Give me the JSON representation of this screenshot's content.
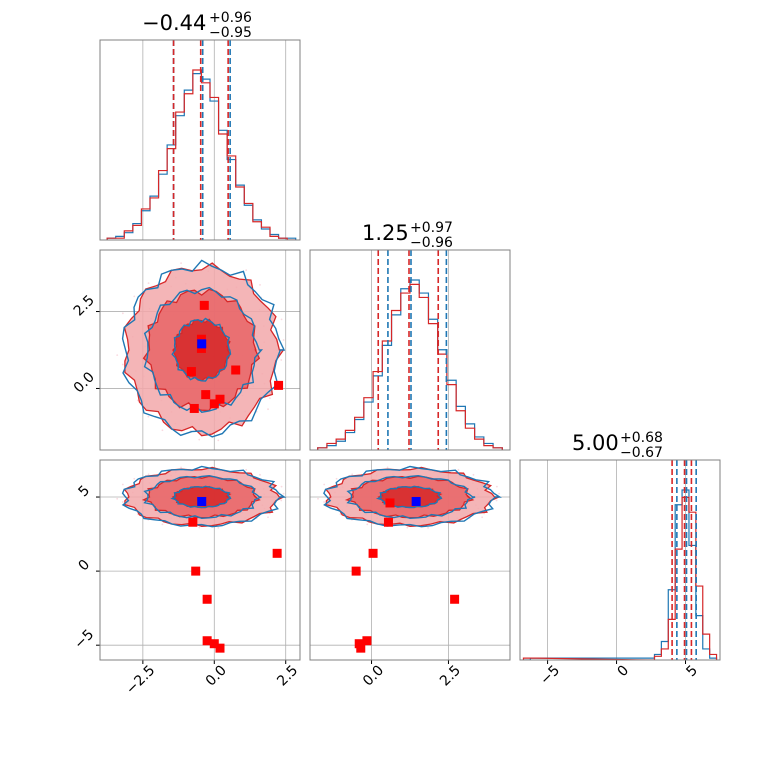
{
  "colors": {
    "samples_a": "#1f77b4",
    "samples_b": "#d62728",
    "points": "#ff0000",
    "truth": "#0000ff",
    "grid": "#b0b0b0",
    "frame": "#808080"
  },
  "chart_data": [
    {
      "type": "histogram",
      "panel": "x0",
      "title": {
        "main": "−0.44",
        "sup": "+0.96",
        "sub": "−0.95"
      },
      "xlim": [
        -4.0,
        3.0
      ],
      "grid": true,
      "reference_lines": {
        "samples_a": [
          -1.46,
          -0.44,
          0.52
        ],
        "samples_b": [
          -1.39,
          -0.44,
          0.52
        ]
      },
      "series": [
        {
          "bin_centers": [
            -3.6,
            -3.3,
            -3.0,
            -2.7,
            -2.4,
            -2.1,
            -1.8,
            -1.5,
            -1.2,
            -0.9,
            -0.6,
            -0.3,
            0.0,
            0.3,
            0.6,
            0.9,
            1.2,
            1.5,
            1.8,
            2.1,
            2.4,
            2.7
          ],
          "counts": [
            1,
            2,
            4,
            9,
            16,
            24,
            36,
            52,
            68,
            82,
            91,
            88,
            76,
            60,
            44,
            30,
            19,
            11,
            6,
            3,
            1,
            1
          ]
        },
        {
          "bin_centers": [
            -3.6,
            -3.3,
            -3.0,
            -2.7,
            -2.4,
            -2.1,
            -1.8,
            -1.5,
            -1.2,
            -0.9,
            -0.6,
            -0.3,
            0.0,
            0.3,
            0.6,
            0.9,
            1.2,
            1.5,
            1.8,
            2.1,
            2.4,
            2.7
          ],
          "counts": [
            1,
            1,
            5,
            8,
            17,
            23,
            38,
            50,
            70,
            80,
            93,
            86,
            78,
            58,
            46,
            29,
            20,
            10,
            7,
            2,
            1,
            0
          ]
        }
      ]
    },
    {
      "type": "histogram",
      "panel": "x1",
      "title": {
        "main": "1.25",
        "sup": "+0.97",
        "sub": "−0.96"
      },
      "xlim": [
        -2.0,
        4.5
      ],
      "grid": true,
      "reference_lines": {
        "samples_a": [
          0.5,
          1.25,
          2.4
        ],
        "samples_b": [
          0.25,
          1.25,
          2.2
        ]
      },
      "series": [
        {
          "bin_centers": [
            -1.6,
            -1.3,
            -1.0,
            -0.7,
            -0.4,
            -0.1,
            0.2,
            0.5,
            0.8,
            1.1,
            1.4,
            1.7,
            2.0,
            2.3,
            2.6,
            2.9,
            3.2,
            3.5,
            3.8,
            4.1
          ],
          "counts": [
            1,
            2,
            4,
            8,
            14,
            22,
            34,
            48,
            62,
            74,
            78,
            72,
            60,
            46,
            32,
            20,
            12,
            6,
            3,
            1
          ]
        },
        {
          "bin_centers": [
            -1.6,
            -1.3,
            -1.0,
            -0.7,
            -0.4,
            -0.1,
            0.2,
            0.5,
            0.8,
            1.1,
            1.4,
            1.7,
            2.0,
            2.3,
            2.6,
            2.9,
            3.2,
            3.5,
            3.8,
            4.1
          ],
          "counts": [
            1,
            3,
            5,
            9,
            15,
            24,
            36,
            50,
            64,
            72,
            76,
            70,
            58,
            44,
            30,
            18,
            10,
            5,
            2,
            1
          ]
        }
      ]
    },
    {
      "type": "histogram",
      "panel": "x2",
      "title": {
        "main": "5.00",
        "sup": "+0.68",
        "sub": "−0.67"
      },
      "xlim": [
        -7.0,
        7.5
      ],
      "xticks": [
        -5,
        0,
        5
      ],
      "grid": true,
      "reference_lines": {
        "samples_a": [
          4.3,
          5.0,
          5.7
        ],
        "samples_b": [
          4.1,
          5.0,
          5.5
        ]
      },
      "series": [
        {
          "bin_centers": [
            -6.5,
            -6.0,
            2.5,
            3.0,
            3.5,
            4.0,
            4.5,
            5.0,
            5.5,
            6.0,
            6.5,
            7.0
          ],
          "counts": [
            0,
            1,
            1,
            3,
            10,
            38,
            84,
            92,
            62,
            24,
            6,
            1
          ]
        },
        {
          "bin_centers": [
            -6.5,
            -6.0,
            2.5,
            3.0,
            3.5,
            4.0,
            4.5,
            5.0,
            5.5,
            6.0,
            6.5,
            7.0
          ],
          "counts": [
            1,
            1,
            0,
            2,
            6,
            22,
            60,
            88,
            80,
            40,
            14,
            3
          ]
        }
      ]
    },
    {
      "type": "scatter",
      "panel": "x0-x1",
      "xlim": [
        -4.0,
        3.0
      ],
      "ylim": [
        -2.0,
        4.5
      ],
      "yticks": [
        0.0,
        2.5
      ],
      "yticklabels": [
        "0.0",
        "2.5"
      ],
      "grid": true,
      "contours": {
        "center": [
          -0.44,
          1.25
        ],
        "spread": [
          0.95,
          0.96
        ],
        "levels": [
          1,
          2,
          2.8
        ]
      },
      "points": [
        {
          "x": -0.35,
          "y": 2.7
        },
        {
          "x": -0.45,
          "y": 1.6
        },
        {
          "x": -0.45,
          "y": 1.3
        },
        {
          "x": -0.8,
          "y": 0.55
        },
        {
          "x": -0.3,
          "y": -0.2
        },
        {
          "x": 0.2,
          "y": -0.35
        },
        {
          "x": 0.0,
          "y": -0.5
        },
        {
          "x": -0.7,
          "y": -0.65
        },
        {
          "x": 0.75,
          "y": 0.6
        },
        {
          "x": 2.25,
          "y": 0.1
        }
      ],
      "truth": {
        "x": -0.44,
        "y": 1.45
      }
    },
    {
      "type": "scatter",
      "panel": "x0-x2",
      "xlim": [
        -4.0,
        3.0
      ],
      "ylim": [
        -6.0,
        7.5
      ],
      "xticks": [
        -2.5,
        0.0,
        2.5
      ],
      "xticklabels": [
        "−2.5",
        "0.0",
        "2.5"
      ],
      "yticks": [
        -5,
        0,
        5
      ],
      "yticklabels": [
        "−5",
        "0",
        "5"
      ],
      "grid": true,
      "contours": {
        "center": [
          -0.44,
          5.0
        ],
        "spread": [
          0.95,
          0.68
        ],
        "levels": [
          1,
          2,
          2.8
        ]
      },
      "points": [
        {
          "x": -0.75,
          "y": 3.3
        },
        {
          "x": -0.65,
          "y": 0.0
        },
        {
          "x": 2.2,
          "y": 1.2
        },
        {
          "x": -0.25,
          "y": -1.9
        },
        {
          "x": -0.25,
          "y": -4.7
        },
        {
          "x": 0.0,
          "y": -4.9
        },
        {
          "x": 0.2,
          "y": -5.2
        }
      ],
      "truth": {
        "x": -0.44,
        "y": 4.7
      }
    },
    {
      "type": "scatter",
      "panel": "x1-x2",
      "xlim": [
        -2.0,
        4.5
      ],
      "ylim": [
        -6.0,
        7.5
      ],
      "xticks": [
        0.0,
        2.5
      ],
      "xticklabels": [
        "0.0",
        "2.5"
      ],
      "grid": true,
      "contours": {
        "center": [
          1.25,
          5.0
        ],
        "spread": [
          0.96,
          0.68
        ],
        "levels": [
          1,
          2,
          2.8
        ]
      },
      "points": [
        {
          "x": 0.55,
          "y": 3.3
        },
        {
          "x": 0.6,
          "y": 4.6
        },
        {
          "x": 0.05,
          "y": 1.2
        },
        {
          "x": -0.5,
          "y": 0.0
        },
        {
          "x": 2.7,
          "y": -1.9
        },
        {
          "x": -0.15,
          "y": -4.7
        },
        {
          "x": -0.4,
          "y": -4.9
        },
        {
          "x": -0.35,
          "y": -5.2
        }
      ],
      "truth": {
        "x": 1.45,
        "y": 4.7
      }
    }
  ]
}
